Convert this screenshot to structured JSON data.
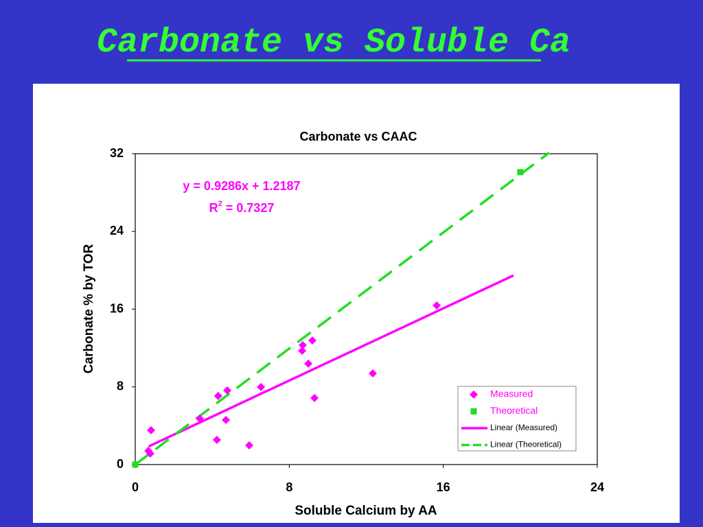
{
  "slide": {
    "title": "Carbonate vs Soluble Ca"
  },
  "chart_data": {
    "type": "scatter",
    "title": "Carbonate vs CAAC",
    "x_label": "Soluble Calcium by AA",
    "y_label": "Carbonate % by TOR",
    "xlim": [
      0,
      24
    ],
    "xticks": [
      0,
      8,
      16,
      24
    ],
    "ylim": [
      0,
      32
    ],
    "yticks": [
      0,
      8,
      16,
      24,
      32
    ],
    "grid": false,
    "legend": "lower right",
    "series": [
      {
        "name": "Measured",
        "color": "#ff00ff",
        "marker": "diamond",
        "x": [
          0.82,
          0.68,
          0.78,
          3.35,
          4.31,
          4.78,
          4.71,
          4.24,
          5.92,
          6.53,
          8.67,
          8.7,
          9.2,
          8.99,
          9.31,
          12.34,
          15.66
        ],
        "values": [
          3.53,
          1.41,
          1.13,
          4.73,
          7.06,
          7.63,
          4.59,
          2.54,
          1.98,
          7.98,
          11.72,
          12.29,
          12.78,
          10.38,
          6.85,
          9.39,
          16.38
        ]
      },
      {
        "name": "Theoretical",
        "color": "#22dd22",
        "marker": "square",
        "x": [
          0,
          20
        ],
        "values": [
          0,
          30.1
        ]
      }
    ],
    "trendlines": [
      {
        "name": "Linear (Measured)",
        "color": "#ff00ff",
        "dashed": false,
        "x": [
          0.7,
          19.65
        ],
        "values": [
          1.87,
          19.47
        ]
      },
      {
        "name": "Linear (Theoretical)",
        "color": "#22dd22",
        "dashed": true,
        "x": [
          0,
          21.5
        ],
        "values": [
          0,
          32.1
        ]
      }
    ],
    "equation": "y = 0.9286x + 1.2187",
    "r_squared": {
      "base": "R",
      "sup": "2",
      "rest": " = 0.7327"
    }
  }
}
